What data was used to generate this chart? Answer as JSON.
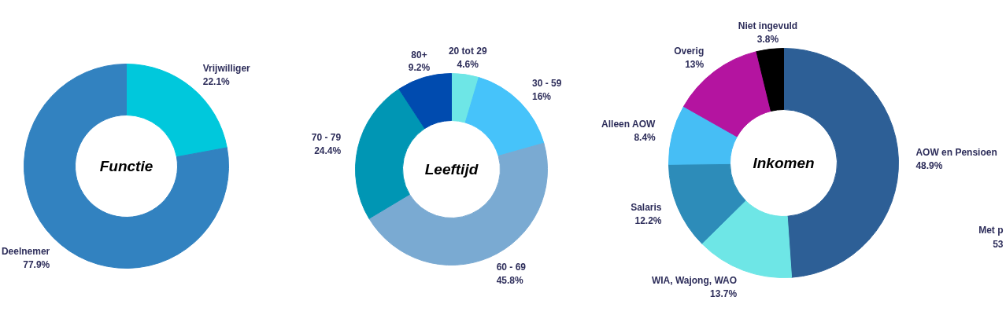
{
  "chart_data": [
    {
      "type": "donut",
      "title": "Functie",
      "categories": [
        "Vrijwilliger",
        "Deelnemer"
      ],
      "values": [
        22.1,
        77.9
      ],
      "value_labels": [
        "22.1%",
        "77.9%"
      ],
      "colors": [
        "#00c8dc",
        "#3282c0"
      ]
    },
    {
      "type": "donut",
      "title": "Leeftijd",
      "categories": [
        "20 tot 29",
        "30 - 59",
        "60 - 69",
        "70 - 79",
        "80+"
      ],
      "values": [
        4.6,
        16,
        45.8,
        24.4,
        9.2
      ],
      "value_labels": [
        "4.6%",
        "16%",
        "45.8%",
        "24.4%",
        "9.2%"
      ],
      "colors": [
        "#6ee6e6",
        "#46c3fa",
        "#7aaad2",
        "#0096b4",
        "#004baf"
      ]
    },
    {
      "type": "donut",
      "title": "Inkomen",
      "categories": [
        "AOW en Pensioen",
        "WIA, Wajong, WAO",
        "Salaris",
        "Alleen AOW",
        "Overig",
        "Niet ingevuld"
      ],
      "values": [
        48.9,
        13.7,
        12.2,
        8.4,
        13,
        3.8
      ],
      "value_labels": [
        "48.9%",
        "13.7%",
        "12.2%",
        "8.4%",
        "13%",
        "3.8%"
      ],
      "colors": [
        "#2d5f96",
        "#6ee6e6",
        "#2d8cb9",
        "#46bef5",
        "#b414a0",
        "#000000"
      ],
      "annotations": [
        "Met p",
        "53"
      ]
    }
  ]
}
